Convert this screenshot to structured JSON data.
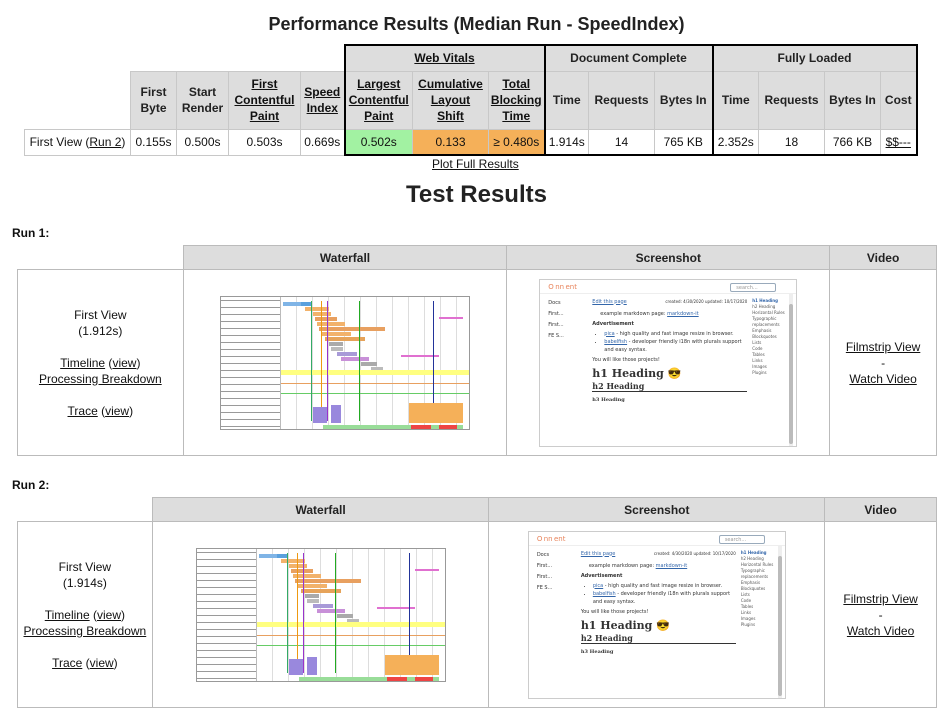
{
  "title": "Performance Results (Median Run - SpeedIndex)",
  "summary": {
    "group_headers": {
      "web_vitals": "Web Vitals",
      "document_complete": "Document Complete",
      "fully_loaded": "Fully Loaded"
    },
    "columns": {
      "first_byte": [
        "First",
        "Byte"
      ],
      "start_render": [
        "Start",
        "Render"
      ],
      "fcp": [
        "First",
        "Contentful",
        "Paint"
      ],
      "speed_index": [
        "Speed",
        "Index"
      ],
      "lcp": [
        "Largest",
        "Contentful",
        "Paint"
      ],
      "cls": [
        "Cumulative",
        "Layout",
        "Shift"
      ],
      "tbt": [
        "Total",
        "Blocking",
        "Time"
      ],
      "time": "Time",
      "requests": "Requests",
      "bytes_in": "Bytes In",
      "cost": "Cost"
    },
    "row": {
      "label_prefix": "First View (",
      "label_link": "Run 2",
      "label_suffix": ")",
      "first_byte": "0.155s",
      "start_render": "0.500s",
      "fcp": "0.503s",
      "speed_index": "0.669s",
      "lcp": "0.502s",
      "cls": "0.133",
      "tbt": "≥ 0.480s",
      "doc_time": "1.914s",
      "doc_requests": "14",
      "doc_bytes": "765 KB",
      "full_time": "2.352s",
      "full_requests": "18",
      "full_bytes": "766 KB",
      "cost": "$$---"
    },
    "status_colors": {
      "good": "#a2f2a2",
      "needs_improvement": "#f5b059"
    }
  },
  "plot_full_results": "Plot Full Results",
  "test_results_heading": "Test Results",
  "column_headers": {
    "waterfall": "Waterfall",
    "screenshot": "Screenshot",
    "video": "Video"
  },
  "runs": [
    {
      "label": "Run 1:",
      "view": "First View",
      "time": "(1.912s)",
      "timeline": "Timeline",
      "view_link": "view",
      "processing": "Processing Breakdown",
      "trace": "Trace",
      "filmstrip": "Filmstrip View",
      "sep": "-",
      "watch": "Watch Video"
    },
    {
      "label": "Run 2:",
      "view": "First View",
      "time": "(1.914s)",
      "timeline": "Timeline",
      "view_link": "view",
      "processing": "Processing Breakdown",
      "trace": "Trace",
      "filmstrip": "Filmstrip View",
      "sep": "-",
      "watch": "Watch Video"
    }
  ],
  "screenshot_page": {
    "search": "search...",
    "sidebar": [
      "Docs",
      "First...",
      "First...",
      "FE S..."
    ],
    "edit": "Edit this page",
    "dates": "created: 4/30/2020  updated: 10/17/2020",
    "line1": "example markdown page: ",
    "line1_link": "markdown-it",
    "advert": "Advertisement",
    "item1_link": "pica",
    "item1": " - high quality and fast image resize in browser.",
    "item2_link": "babelfish",
    "item2": " - developer friendly i18n with plurals support and easy syntax.",
    "like": "You will like those projects!",
    "h1": "h1 Heading 😎",
    "h2": "h2 Heading",
    "h3": "h3 Heading",
    "toc": [
      "h1 Heading",
      "h2 Heading",
      "Horizontal Rules",
      "Typographic replacements",
      "Emphasis",
      "Blockquotes",
      "Lists",
      "Code",
      "Tables",
      "Links",
      "Images",
      "Plugins"
    ]
  },
  "icons": {
    "search": "search-icon"
  }
}
